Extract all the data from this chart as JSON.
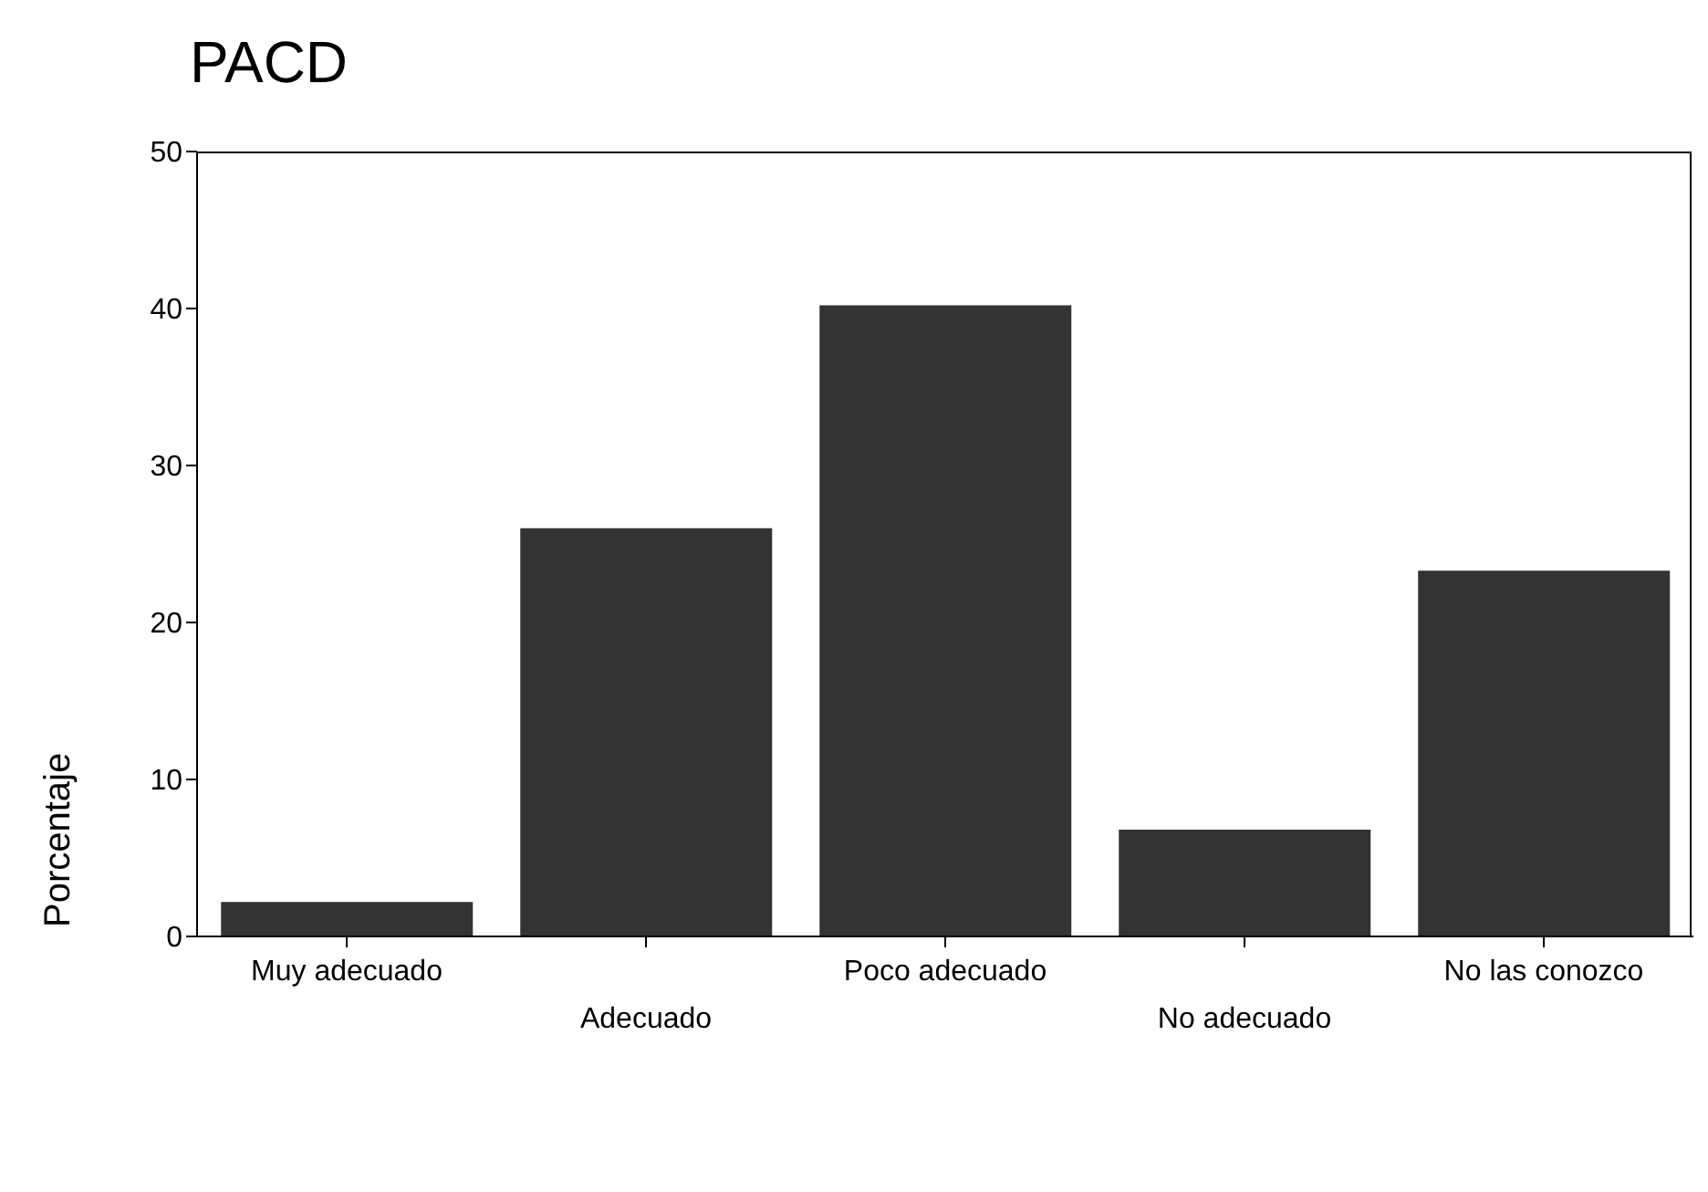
{
  "chart_data": {
    "type": "bar",
    "title": "PACD",
    "ylabel": "Porcentaje",
    "categories": [
      "Muy adecuado",
      "Adecuado",
      "Poco adecuado",
      "No adecuado",
      "No las conozco"
    ],
    "values": [
      2.2,
      26,
      40.2,
      6.8,
      23.3
    ],
    "color": "#333333",
    "ylim": [
      0,
      50
    ],
    "yticks": [
      0,
      10,
      20,
      30,
      40,
      50
    ]
  }
}
